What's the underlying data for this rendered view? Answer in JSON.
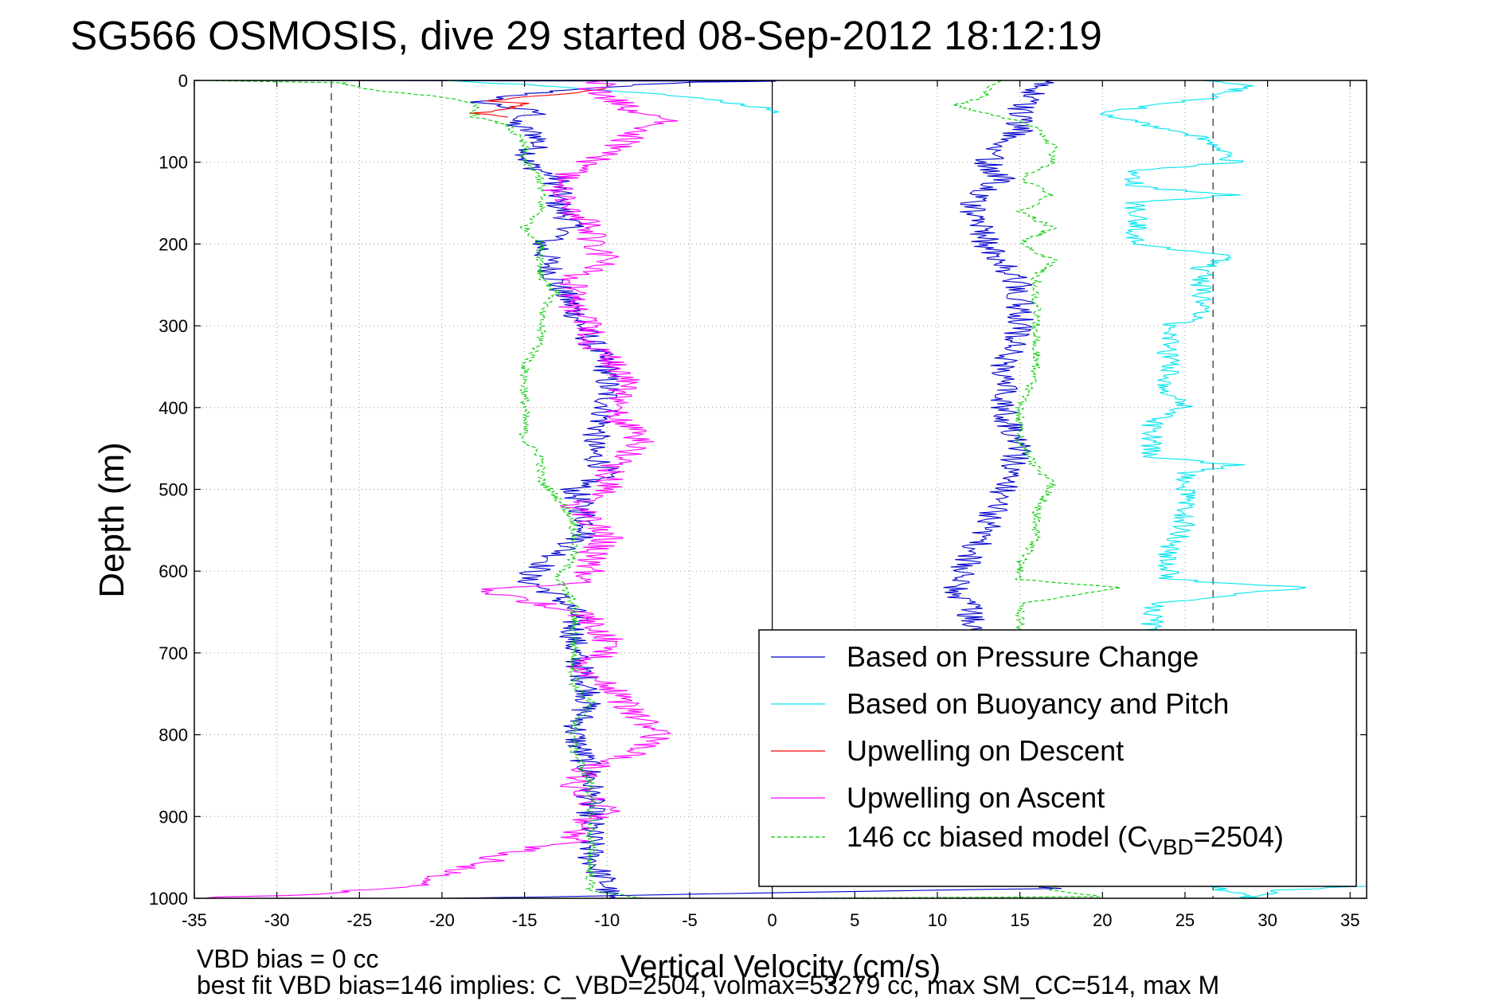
{
  "chart_data": {
    "type": "line",
    "title": "SG566 OSMOSIS, dive 29 started 08-Sep-2012 18:12:19",
    "xlabel": "Vertical Velocity (cm/s)",
    "ylabel": "Depth (m)",
    "xlim": [
      -35,
      36
    ],
    "ylim": [
      0,
      1000
    ],
    "y_reversed": true,
    "grid": true,
    "legend_position": "bottom-right",
    "x_ticks": [
      -35,
      -30,
      -25,
      -20,
      -15,
      -10,
      -5,
      0,
      5,
      10,
      15,
      20,
      25,
      30,
      35
    ],
    "x_tick_labels": [
      "-35",
      "-30",
      "-25",
      "-20",
      "-15",
      "-10",
      "-5",
      "0",
      "5",
      "10",
      "15",
      "20",
      "25",
      "30",
      "35"
    ],
    "y_ticks": [
      0,
      100,
      200,
      300,
      400,
      500,
      600,
      700,
      800,
      900,
      1000
    ],
    "y_tick_labels": [
      "0",
      "100",
      "200",
      "300",
      "400",
      "500",
      "600",
      "700",
      "800",
      "900",
      "1000"
    ],
    "reference_lines": {
      "vertical_dashed": [
        -26.7,
        26.7
      ],
      "vertical_solid": [
        0
      ]
    },
    "footnotes": [
      "VBD bias = 0 cc",
      "best fit VBD bias=146 implies: C_VBD=2504, volmax=53279 cc, max SM_CC=514, max M"
    ],
    "legend": [
      {
        "label": "Based on Pressure Change",
        "color": "#0000cc",
        "dash": "solid"
      },
      {
        "label": "Based on Buoyancy and Pitch",
        "color": "#00e5ee",
        "dash": "solid"
      },
      {
        "label": "Upwelling on Descent",
        "color": "#ff0000",
        "dash": "solid"
      },
      {
        "label": "Upwelling on Ascent",
        "color": "#ff00ff",
        "dash": "solid"
      },
      {
        "label_main": "146 cc biased model (C",
        "label_sub": "VBD",
        "label_tail": "=2504)",
        "color": "#00cc00",
        "dash": "dashed"
      }
    ],
    "series": [
      {
        "name": "Based on Pressure Change",
        "color": "#0000cc",
        "noise": 0.9,
        "points": [
          [
            -35,
            0
          ],
          [
            0,
            1
          ],
          [
            -5,
            2
          ],
          [
            -12,
            10
          ],
          [
            -18,
            25
          ],
          [
            -14,
            40
          ],
          [
            -16,
            50
          ],
          [
            -14,
            70
          ],
          [
            -15,
            100
          ],
          [
            -13,
            120
          ],
          [
            -13,
            150
          ],
          [
            -12,
            180
          ],
          [
            -14,
            200
          ],
          [
            -13,
            250
          ],
          [
            -12,
            280
          ],
          [
            -11,
            320
          ],
          [
            -10,
            350
          ],
          [
            -10,
            400
          ],
          [
            -11,
            450
          ],
          [
            -10,
            480
          ],
          [
            -12,
            500
          ],
          [
            -11,
            550
          ],
          [
            -13,
            580
          ],
          [
            -15,
            610
          ],
          [
            -13,
            630
          ],
          [
            -12,
            650
          ],
          [
            -12,
            700
          ],
          [
            -11,
            750
          ],
          [
            -12,
            800
          ],
          [
            -11,
            850
          ],
          [
            -11,
            900
          ],
          [
            -11,
            950
          ],
          [
            -10,
            985
          ],
          [
            -10,
            1000
          ]
        ]
      },
      {
        "name": "Based on Pressure Change",
        "color": "#0000cc",
        "noise": 0.9,
        "points": [
          [
            -20,
            1000
          ],
          [
            17,
            988
          ],
          [
            11,
            970
          ],
          [
            12,
            950
          ],
          [
            13,
            900
          ],
          [
            15,
            850
          ],
          [
            14,
            800
          ],
          [
            14,
            750
          ],
          [
            13,
            700
          ],
          [
            12,
            650
          ],
          [
            11,
            620
          ],
          [
            12,
            580
          ],
          [
            13,
            550
          ],
          [
            14,
            500
          ],
          [
            15,
            450
          ],
          [
            14,
            400
          ],
          [
            14,
            350
          ],
          [
            15,
            300
          ],
          [
            15,
            250
          ],
          [
            13,
            200
          ],
          [
            12,
            150
          ],
          [
            14,
            120
          ],
          [
            13,
            100
          ],
          [
            15,
            60
          ],
          [
            15,
            30
          ],
          [
            16,
            10
          ],
          [
            17,
            0
          ]
        ]
      },
      {
        "name": "Based on Buoyancy and Pitch",
        "color": "#00e5ee",
        "noise": 0.5,
        "points": [
          [
            -20,
            0
          ],
          [
            -15,
            5
          ],
          [
            -10,
            12
          ],
          [
            -5,
            20
          ],
          [
            0,
            35
          ],
          [
            0,
            40
          ]
        ]
      },
      {
        "name": "Based on Buoyancy and Pitch",
        "color": "#00e5ee",
        "noise": 0.7,
        "points": [
          [
            36,
            985
          ],
          [
            31,
            990
          ],
          [
            29,
            1000
          ],
          [
            23,
            960
          ],
          [
            23,
            900
          ],
          [
            23,
            850
          ],
          [
            23,
            800
          ],
          [
            23,
            750
          ],
          [
            23,
            700
          ],
          [
            23,
            660
          ],
          [
            23,
            640
          ],
          [
            32,
            620
          ],
          [
            24,
            610
          ],
          [
            24,
            590
          ],
          [
            24,
            570
          ],
          [
            25,
            550
          ],
          [
            25,
            530
          ],
          [
            25,
            500
          ],
          [
            25,
            480
          ],
          [
            28,
            470
          ],
          [
            23,
            460
          ],
          [
            23,
            420
          ],
          [
            25,
            400
          ],
          [
            24,
            380
          ],
          [
            24,
            350
          ],
          [
            24,
            320
          ],
          [
            24,
            300
          ],
          [
            26,
            290
          ],
          [
            26,
            250
          ],
          [
            26,
            230
          ],
          [
            28,
            215
          ],
          [
            22,
            200
          ],
          [
            22,
            180
          ],
          [
            22,
            150
          ],
          [
            28,
            140
          ],
          [
            22,
            130
          ],
          [
            22,
            110
          ],
          [
            28,
            100
          ],
          [
            26,
            70
          ],
          [
            20,
            40
          ],
          [
            27,
            20
          ],
          [
            29,
            5
          ],
          [
            26,
            0
          ]
        ]
      },
      {
        "name": "Upwelling on Descent",
        "color": "#ff0000",
        "noise": 0.4,
        "points": [
          [
            -10,
            10
          ],
          [
            -12,
            15
          ],
          [
            -15,
            20
          ],
          [
            -17,
            25
          ],
          [
            -15,
            28
          ],
          [
            -16,
            35
          ],
          [
            -18,
            40
          ],
          [
            -16,
            45
          ]
        ]
      },
      {
        "name": "Upwelling on Ascent",
        "color": "#ff00ff",
        "noise": 1.0,
        "points": [
          [
            -35,
            1000
          ],
          [
            -28,
            995
          ],
          [
            -22,
            985
          ],
          [
            -18,
            960
          ],
          [
            -16,
            945
          ],
          [
            -12,
            930
          ],
          [
            -12,
            910
          ],
          [
            -10,
            895
          ],
          [
            -11,
            880
          ],
          [
            -12,
            860
          ],
          [
            -11,
            840
          ],
          [
            -8,
            820
          ],
          [
            -7,
            800
          ],
          [
            -8,
            780
          ],
          [
            -9,
            760
          ],
          [
            -10,
            740
          ],
          [
            -12,
            720
          ],
          [
            -10,
            700
          ],
          [
            -10,
            680
          ],
          [
            -11,
            660
          ],
          [
            -12,
            650
          ],
          [
            -14,
            640
          ],
          [
            -18,
            622
          ],
          [
            -12,
            615
          ],
          [
            -11,
            600
          ],
          [
            -11,
            580
          ],
          [
            -10,
            560
          ],
          [
            -11,
            540
          ],
          [
            -12,
            520
          ],
          [
            -10,
            500
          ],
          [
            -10,
            480
          ],
          [
            -9,
            460
          ],
          [
            -8,
            440
          ],
          [
            -9,
            420
          ],
          [
            -10,
            400
          ],
          [
            -9,
            380
          ],
          [
            -9,
            360
          ],
          [
            -10,
            340
          ],
          [
            -11,
            320
          ],
          [
            -11,
            300
          ],
          [
            -12,
            280
          ],
          [
            -12,
            260
          ],
          [
            -12,
            240
          ],
          [
            -10,
            220
          ],
          [
            -11,
            200
          ],
          [
            -11,
            180
          ],
          [
            -12,
            160
          ],
          [
            -13,
            140
          ],
          [
            -13,
            130
          ],
          [
            -12,
            110
          ],
          [
            -10,
            90
          ],
          [
            -9,
            75
          ],
          [
            -8,
            60
          ],
          [
            -6,
            48
          ],
          [
            -8,
            40
          ],
          [
            -9,
            30
          ],
          [
            -10,
            20
          ],
          [
            -11,
            10
          ],
          [
            -10,
            0
          ]
        ]
      },
      {
        "name": "146 cc biased model (C_VBD=2504)",
        "color": "#00cc00",
        "dash": true,
        "noise": 0.3,
        "points": [
          [
            -35,
            0
          ],
          [
            -26,
            3
          ],
          [
            -25,
            10
          ],
          [
            -20,
            20
          ],
          [
            -18,
            30
          ],
          [
            -18,
            45
          ],
          [
            -16,
            55
          ],
          [
            -15,
            80
          ],
          [
            -15,
            100
          ],
          [
            -14,
            120
          ],
          [
            -14,
            140
          ],
          [
            -14,
            160
          ],
          [
            -15,
            180
          ],
          [
            -14,
            200
          ],
          [
            -14,
            240
          ],
          [
            -13,
            260
          ],
          [
            -14,
            280
          ],
          [
            -14,
            320
          ],
          [
            -15,
            350
          ],
          [
            -15,
            400
          ],
          [
            -15,
            440
          ],
          [
            -14,
            460
          ],
          [
            -14,
            490
          ],
          [
            -13,
            510
          ],
          [
            -12,
            540
          ],
          [
            -12,
            580
          ],
          [
            -13,
            610
          ],
          [
            -12,
            640
          ],
          [
            -12,
            700
          ],
          [
            -12,
            740
          ],
          [
            -11,
            760
          ],
          [
            -12,
            790
          ],
          [
            -12,
            820
          ],
          [
            -11,
            860
          ],
          [
            -11,
            900
          ],
          [
            -11,
            950
          ],
          [
            -11,
            990
          ],
          [
            -8,
            1000
          ],
          [
            0,
            1000
          ]
        ]
      },
      {
        "name": "146 cc biased model (C_VBD=2504)",
        "color": "#00cc00",
        "dash": true,
        "noise": 0.3,
        "points": [
          [
            0,
            1000
          ],
          [
            20,
            998
          ],
          [
            17,
            990
          ],
          [
            16,
            960
          ],
          [
            15,
            940
          ],
          [
            15,
            900
          ],
          [
            15,
            860
          ],
          [
            15,
            820
          ],
          [
            15,
            780
          ],
          [
            15,
            740
          ],
          [
            15,
            700
          ],
          [
            15,
            660
          ],
          [
            15,
            640
          ],
          [
            21,
            620
          ],
          [
            15,
            610
          ],
          [
            15,
            590
          ],
          [
            16,
            560
          ],
          [
            16,
            530
          ],
          [
            17,
            490
          ],
          [
            16,
            475
          ],
          [
            15,
            440
          ],
          [
            15,
            400
          ],
          [
            16,
            360
          ],
          [
            16,
            330
          ],
          [
            16,
            300
          ],
          [
            16,
            270
          ],
          [
            16,
            240
          ],
          [
            17,
            220
          ],
          [
            15,
            200
          ],
          [
            17,
            180
          ],
          [
            15,
            160
          ],
          [
            17,
            140
          ],
          [
            15,
            120
          ],
          [
            17,
            100
          ],
          [
            17,
            80
          ],
          [
            16,
            60
          ],
          [
            15,
            50
          ],
          [
            11,
            30
          ],
          [
            13,
            20
          ],
          [
            13,
            10
          ],
          [
            14,
            0
          ]
        ]
      }
    ]
  }
}
